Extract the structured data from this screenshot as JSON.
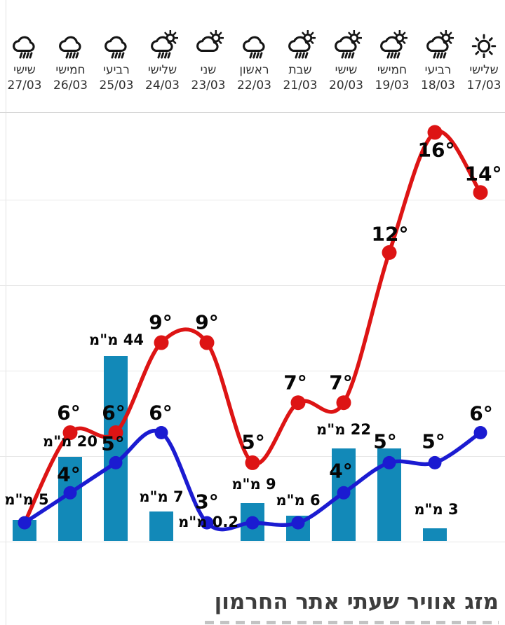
{
  "footer": {
    "title": "מזג אוויר שעתי אתר החרמון"
  },
  "colors": {
    "high_line": "#dd1414",
    "low_line": "#1b1bd1",
    "precip_bar": "#1289b8",
    "gridline": "#e8e8e8",
    "divider": "#d6d6d6",
    "icon_stroke": "#151515",
    "label_text": "#060606",
    "title_text": "#3d3d3d"
  },
  "chart_data": {
    "type": "line",
    "subtype": "two temperature lines (high red, low blue) + precipitation bars, x-axis right-to-left by date",
    "title": "מזג אוויר שעתי אתר החרמון",
    "direction": "rtl",
    "grid": "horizontal-only",
    "legend": "none",
    "units": {
      "temperature": "°",
      "precipitation": "מ\"מ"
    },
    "days": [
      {
        "date": "17/03",
        "weekday": "שלישי",
        "icon": "sun",
        "high": 14,
        "low": 6,
        "precip_mm": 0
      },
      {
        "date": "18/03",
        "weekday": "רביעי",
        "icon": "sun-cloud-rain",
        "high": 16,
        "low": 5,
        "precip_mm": 3
      },
      {
        "date": "19/03",
        "weekday": "חמישי",
        "icon": "sun-cloud-rain",
        "high": 12,
        "low": 5,
        "precip_mm": 22
      },
      {
        "date": "20/03",
        "weekday": "שישי",
        "icon": "sun-cloud-rain",
        "high": 7,
        "low": 4,
        "precip_mm": 22
      },
      {
        "date": "21/03",
        "weekday": "שבת",
        "icon": "sun-cloud-rain",
        "high": 7,
        "low": 3,
        "precip_mm": 6
      },
      {
        "date": "22/03",
        "weekday": "ראשון",
        "icon": "cloud-rain",
        "high": 5,
        "low": 3,
        "precip_mm": 9
      },
      {
        "date": "23/03",
        "weekday": "שני",
        "icon": "sun-cloud",
        "high": 9,
        "low": 3,
        "precip_mm": 0.2
      },
      {
        "date": "24/03",
        "weekday": "שלישי",
        "icon": "sun-cloud-rain",
        "high": 9,
        "low": 6,
        "precip_mm": 7
      },
      {
        "date": "25/03",
        "weekday": "רביעי",
        "icon": "cloud-rain",
        "high": 6,
        "low": 5,
        "precip_mm": 44
      },
      {
        "date": "26/03",
        "weekday": "חמישי",
        "icon": "cloud-rain",
        "high": 6,
        "low": 4,
        "precip_mm": 20
      },
      {
        "date": "27/03",
        "weekday": "שישי",
        "icon": "cloud-rain",
        "high": 3,
        "low": 3,
        "precip_mm": 5
      }
    ],
    "visible_labels": {
      "high": [
        "14°",
        "16°",
        "12°",
        "7°",
        "7°",
        "5°",
        "9°",
        "9°",
        "6°",
        "6°",
        null
      ],
      "low": [
        "6°",
        "5°",
        "5°",
        "4°",
        null,
        null,
        "3°",
        "6°",
        "5°",
        "4°",
        null
      ],
      "precip": [
        null,
        "3 מ\"מ",
        null,
        "22 מ\"מ",
        "6 מ\"מ",
        "9 מ\"מ",
        "0.2 מ\"מ",
        "7 מ\"מ",
        "44 מ\"מ",
        "20 מ\"מ",
        "5 מ\"מ"
      ]
    }
  }
}
